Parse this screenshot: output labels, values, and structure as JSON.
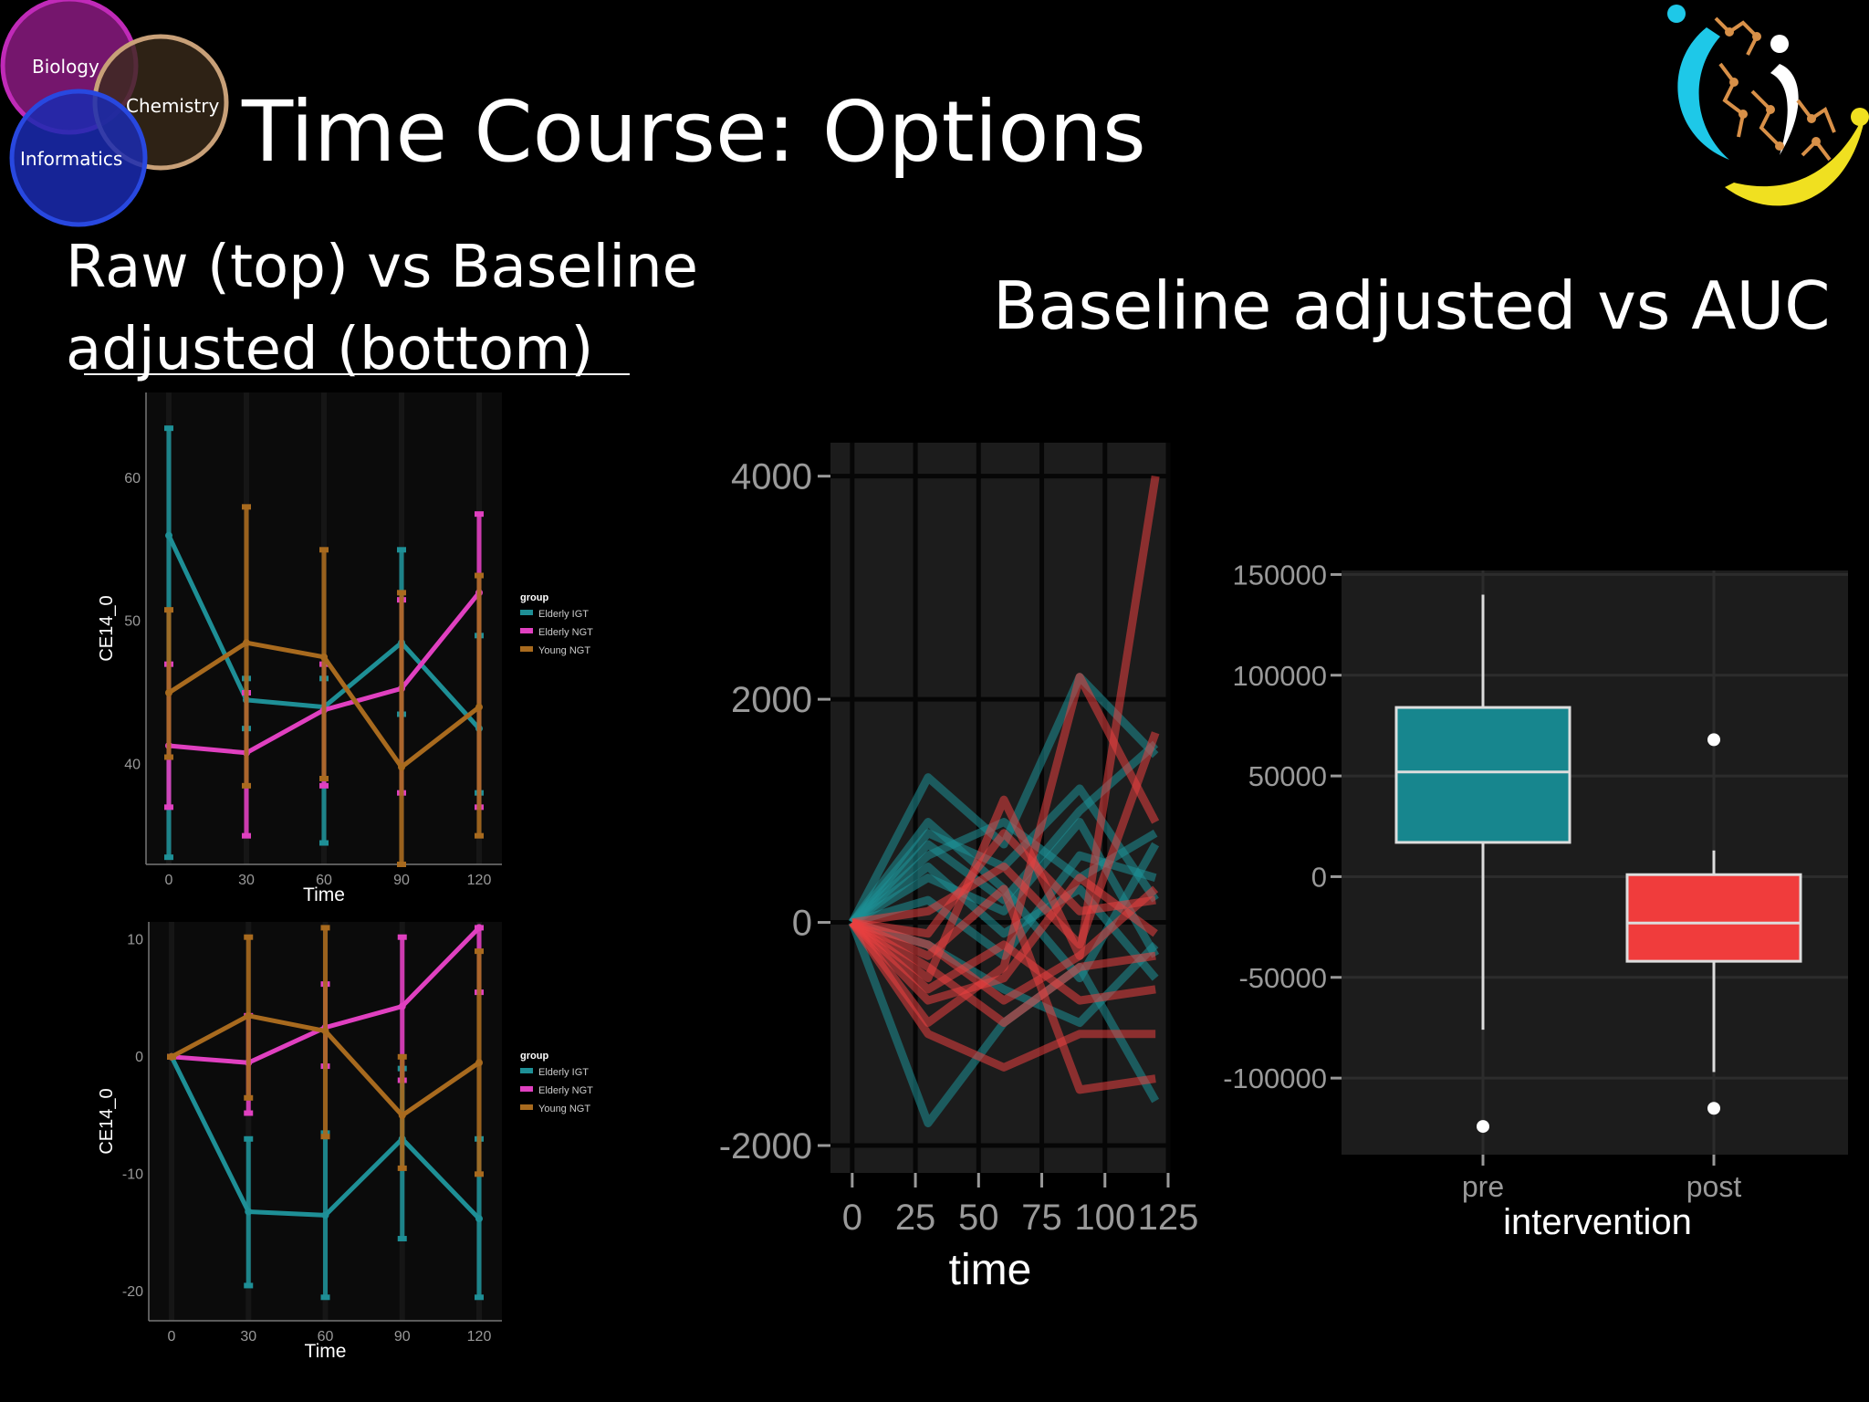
{
  "slide": {
    "title": "Time Course: Options",
    "left_heading_line1": "Raw (top) vs Baseline",
    "left_heading_line2": "adjusted (bottom)",
    "right_heading": "Baseline adjusted vs AUC"
  },
  "venn": {
    "labels": [
      "Biology",
      "Chemistry",
      "Informatics"
    ],
    "colors": [
      "#c02ab8",
      "#c8a078",
      "#2848e0"
    ]
  },
  "logo": {
    "icon": "molecule-logo-icon",
    "colors": [
      "#1ec8e8",
      "#f0e020",
      "#d89048"
    ]
  },
  "chart_data": [
    {
      "id": "raw",
      "type": "line",
      "x": [
        0,
        30,
        60,
        90,
        120
      ],
      "xlabel": "Time",
      "ylabel": "CE14_0",
      "yticks": [
        40,
        50,
        60
      ],
      "ylim": [
        33,
        66
      ],
      "legend_title": "group",
      "series": [
        {
          "name": "Elderly IGT",
          "color": "#1e8f96",
          "values": [
            56,
            44.5,
            44,
            48.5,
            42.5
          ],
          "lo": [
            33.5,
            42.5,
            34.5,
            43.5,
            38
          ],
          "hi": [
            63.5,
            46,
            46,
            55,
            49
          ]
        },
        {
          "name": "Elderly NGT",
          "color": "#e040c0",
          "values": [
            41.3,
            40.8,
            43.8,
            45.3,
            52
          ],
          "lo": [
            37,
            35,
            38.5,
            38,
            37
          ],
          "hi": [
            47,
            45,
            47,
            51.5,
            57.5
          ]
        },
        {
          "name": "Young NGT",
          "color": "#a86a1e",
          "values": [
            45,
            48.5,
            47.5,
            39.8,
            44
          ],
          "lo": [
            40.5,
            38.5,
            39,
            33,
            35
          ],
          "hi": [
            50.8,
            58,
            55,
            52,
            53.2
          ]
        }
      ]
    },
    {
      "id": "baseline",
      "type": "line",
      "x": [
        0,
        30,
        60,
        90,
        120
      ],
      "xlabel": "Time",
      "ylabel": "CE14_0",
      "yticks": [
        -20,
        -10,
        0,
        10
      ],
      "ylim": [
        -22.5,
        11.5
      ],
      "legend_title": "group",
      "series": [
        {
          "name": "Elderly IGT",
          "color": "#1e8f96",
          "values": [
            0,
            -13.2,
            -13.5,
            -7,
            -13.8
          ],
          "lo": [
            0,
            -19.5,
            -20.5,
            -15.5,
            -20.5
          ],
          "hi": [
            0,
            -7,
            -6.5,
            -1,
            -7
          ]
        },
        {
          "name": "Elderly NGT",
          "color": "#e040c0",
          "values": [
            0,
            -0.5,
            2.5,
            4.3,
            11
          ],
          "lo": [
            0,
            -4.8,
            -0.8,
            -2,
            5.5
          ],
          "hi": [
            0,
            3.5,
            6.2,
            10.2,
            11
          ]
        },
        {
          "name": "Young NGT",
          "color": "#a86a1e",
          "values": [
            0,
            3.5,
            2.2,
            -5,
            -0.5
          ],
          "lo": [
            0,
            -3.5,
            -6.8,
            -9.5,
            -10
          ],
          "hi": [
            0,
            10.2,
            11,
            0,
            9
          ]
        }
      ]
    },
    {
      "id": "spaghetti",
      "type": "line",
      "x": [
        0,
        30,
        60,
        90,
        120
      ],
      "xticks": [
        0,
        25,
        50,
        75,
        100,
        125
      ],
      "xlim": [
        -5,
        125
      ],
      "yticks": [
        -2000,
        0,
        2000,
        4000
      ],
      "ylim": [
        -2000,
        4300
      ],
      "xlabel": "time",
      "ylabel": "",
      "series": [
        {
          "color": "#1e8f96",
          "values": [
            0,
            1300,
            700,
            2200,
            1500
          ]
        },
        {
          "color": "#1e8f96",
          "values": [
            0,
            800,
            500,
            1200,
            200
          ]
        },
        {
          "color": "#1e8f96",
          "values": [
            0,
            600,
            900,
            400,
            800
          ]
        },
        {
          "color": "#1e8f96",
          "values": [
            0,
            400,
            100,
            900,
            -300
          ]
        },
        {
          "color": "#1e8f96",
          "values": [
            0,
            -1800,
            -900,
            -400,
            -1600
          ]
        },
        {
          "color": "#1e8f96",
          "values": [
            0,
            200,
            -300,
            600,
            400
          ]
        },
        {
          "color": "#1e8f96",
          "values": [
            0,
            900,
            300,
            -500,
            700
          ]
        },
        {
          "color": "#1e8f96",
          "values": [
            0,
            -200,
            -600,
            -900,
            -200
          ]
        },
        {
          "color": "#1e8f96",
          "values": [
            0,
            700,
            200,
            1000,
            1600
          ]
        },
        {
          "color": "#1e8f96",
          "values": [
            0,
            500,
            -100,
            300,
            -500
          ]
        },
        {
          "color": "#e84040",
          "values": [
            0,
            -500,
            1100,
            -300,
            4000
          ]
        },
        {
          "color": "#e84040",
          "values": [
            0,
            -900,
            -400,
            2200,
            900
          ]
        },
        {
          "color": "#e84040",
          "values": [
            0,
            -300,
            300,
            -1500,
            -1400
          ]
        },
        {
          "color": "#e84040",
          "values": [
            0,
            -1000,
            -1300,
            -1000,
            -1000
          ]
        },
        {
          "color": "#e84040",
          "values": [
            0,
            -200,
            -700,
            -300,
            300
          ]
        },
        {
          "color": "#e84040",
          "values": [
            0,
            100,
            500,
            -200,
            1700
          ]
        },
        {
          "color": "#e84040",
          "values": [
            0,
            -600,
            -200,
            -700,
            -600
          ]
        },
        {
          "color": "#e84040",
          "values": [
            0,
            -100,
            800,
            100,
            200
          ]
        },
        {
          "color": "#e84040",
          "values": [
            0,
            -400,
            -900,
            -400,
            -300
          ]
        },
        {
          "color": "#e84040",
          "values": [
            0,
            -700,
            -500,
            400,
            -100
          ]
        }
      ]
    },
    {
      "id": "auc",
      "type": "box",
      "categories": [
        "pre",
        "post"
      ],
      "xlabel": "intervention",
      "ylabel": "",
      "yticks": [
        -100000,
        -50000,
        0,
        50000,
        100000,
        150000
      ],
      "ylim": [
        -138000,
        152000
      ],
      "boxes": [
        {
          "category": "pre",
          "color": "#17868e",
          "q1": 17000,
          "median": 52000,
          "q3": 84000,
          "whisker_low": -76000,
          "whisker_high": 140000,
          "outliers": [
            -124000
          ]
        },
        {
          "category": "post",
          "color": "#f03c3c",
          "q1": -42000,
          "median": -23000,
          "q3": 1000,
          "whisker_low": -97000,
          "whisker_high": 13000,
          "outliers": [
            68000,
            -115000
          ]
        }
      ]
    }
  ]
}
